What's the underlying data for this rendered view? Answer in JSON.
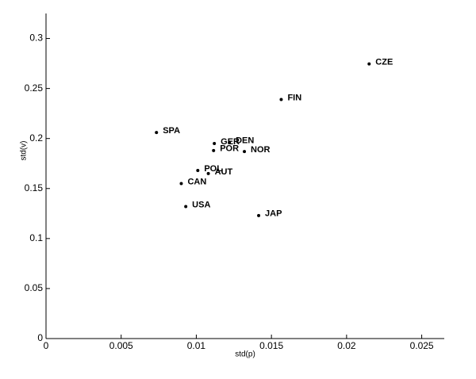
{
  "chart_data": {
    "type": "scatter",
    "x_label": "std(p)",
    "y_label": "std(v)",
    "point_labels": [
      "CZE",
      "FIN",
      "SPA",
      "GER",
      "DEN",
      "POR",
      "NOR",
      "POL",
      "AUT",
      "CAN",
      "USA",
      "JAP"
    ],
    "x": [
      0.0215,
      0.01565,
      0.00735,
      0.0112,
      0.0122,
      0.01115,
      0.0132,
      0.0101,
      0.0108,
      0.009,
      0.0093,
      0.01415
    ],
    "y": [
      0.2746,
      0.239,
      0.206,
      0.195,
      0.196,
      0.188,
      0.187,
      0.168,
      0.165,
      0.155,
      0.132,
      0.123
    ],
    "color": "#000000",
    "xlim": [
      0,
      0.0265
    ],
    "ylim": [
      0,
      0.325
    ],
    "xticks": [
      0,
      0.005,
      0.01,
      0.015,
      0.02,
      0.025
    ],
    "yticks": [
      0,
      0.05,
      0.1,
      0.15,
      0.2,
      0.25,
      0.3
    ]
  }
}
